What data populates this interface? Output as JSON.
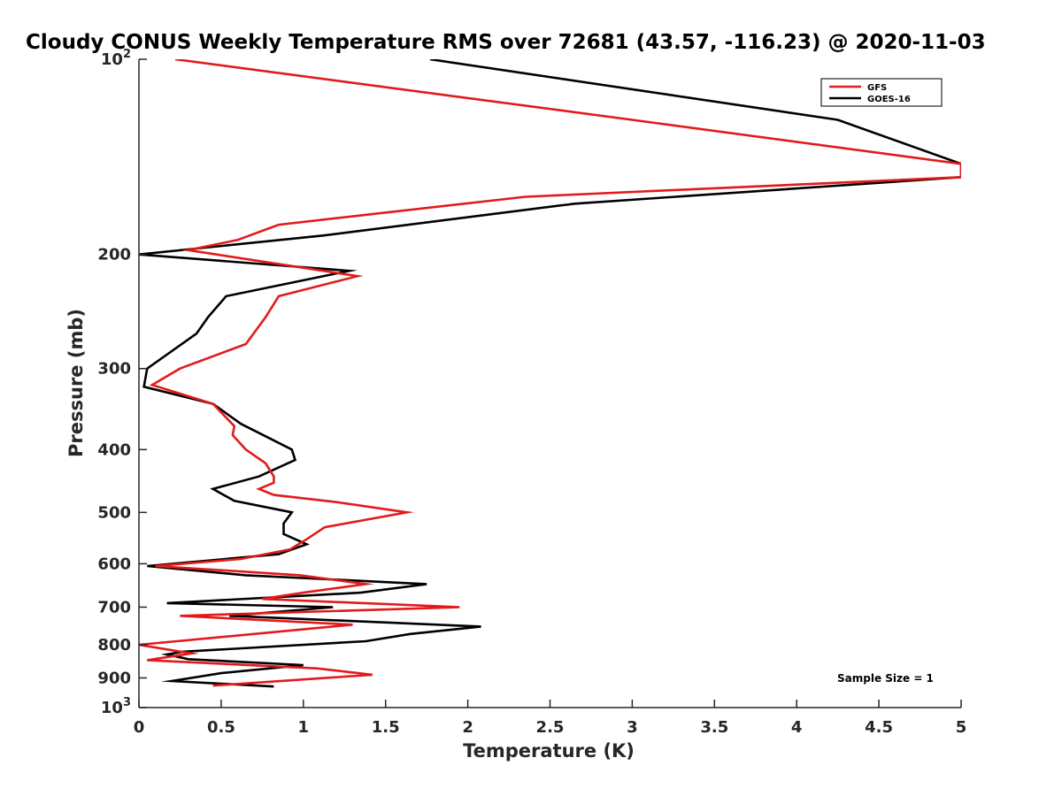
{
  "chart_data": {
    "type": "line",
    "title": "Cloudy CONUS Weekly Temperature RMS over 72681 (43.57, -116.23) @ 2020-11-03",
    "xlabel": "Temperature (K)",
    "ylabel": "Pressure (mb)",
    "xlim": [
      0,
      5
    ],
    "ylim": [
      100,
      1000
    ],
    "y_scale": "log",
    "y_reversed": true,
    "grid": false,
    "legend_position": "top-right",
    "x_ticks": [
      "0",
      "0.5",
      "1",
      "1.5",
      "2",
      "2.5",
      "3",
      "3.5",
      "4",
      "4.5",
      "5"
    ],
    "y_ticks": [
      {
        "value": 100,
        "label": "10",
        "sup": "2"
      },
      {
        "value": 200,
        "label": "200",
        "sup": ""
      },
      {
        "value": 300,
        "label": "300",
        "sup": ""
      },
      {
        "value": 400,
        "label": "400",
        "sup": ""
      },
      {
        "value": 500,
        "label": "500",
        "sup": ""
      },
      {
        "value": 600,
        "label": "600",
        "sup": ""
      },
      {
        "value": 700,
        "label": "700",
        "sup": ""
      },
      {
        "value": 800,
        "label": "800",
        "sup": ""
      },
      {
        "value": 900,
        "label": "900",
        "sup": ""
      },
      {
        "value": 1000,
        "label": "10",
        "sup": "3"
      }
    ],
    "annotation": "Sample Size = 1",
    "series": [
      {
        "name": "GFS",
        "color": "#e31a1c",
        "x": [
          0.22,
          3.0,
          5.0,
          5.0,
          2.35,
          0.85,
          0.6,
          0.3,
          1.33,
          0.85,
          0.77,
          0.65,
          0.25,
          0.08,
          0.45,
          0.58,
          0.57,
          0.65,
          0.77,
          0.82,
          0.82,
          0.73,
          0.82,
          1.2,
          1.63,
          1.13,
          1.02,
          0.92,
          0.62,
          0.1,
          0.98,
          1.38,
          1.0,
          0.75,
          1.95,
          0.25,
          1.3,
          0.0,
          0.32,
          0.05,
          1.08,
          1.42,
          0.45
        ],
        "y": [
          100,
          124,
          145,
          152,
          163,
          180,
          190,
          197,
          216,
          232,
          250,
          275,
          300,
          318,
          340,
          368,
          380,
          400,
          420,
          440,
          450,
          460,
          470,
          482,
          500,
          527,
          550,
          570,
          590,
          605,
          625,
          645,
          665,
          680,
          700,
          722,
          745,
          800,
          825,
          845,
          870,
          890,
          925
        ]
      },
      {
        "name": "GOES-16",
        "color": "#000000",
        "x": [
          1.77,
          4.25,
          5.0,
          5.0,
          2.65,
          1.12,
          0.0,
          1.28,
          0.53,
          0.42,
          0.35,
          0.05,
          0.03,
          0.45,
          0.62,
          0.93,
          0.95,
          0.73,
          0.45,
          0.58,
          0.93,
          0.88,
          0.88,
          1.02,
          0.85,
          0.05,
          0.65,
          1.75,
          1.35,
          0.17,
          1.18,
          0.55,
          2.08,
          1.65,
          1.38,
          0.27,
          0.17,
          0.3,
          1.0,
          0.5,
          0.2,
          0.82
        ],
        "y": [
          100,
          124,
          145,
          152,
          167,
          187,
          200,
          212,
          232,
          250,
          265,
          300,
          320,
          340,
          365,
          400,
          415,
          440,
          460,
          480,
          500,
          520,
          540,
          560,
          580,
          605,
          625,
          645,
          665,
          690,
          700,
          722,
          750,
          770,
          790,
          820,
          828,
          842,
          860,
          885,
          910,
          928
        ]
      }
    ]
  }
}
